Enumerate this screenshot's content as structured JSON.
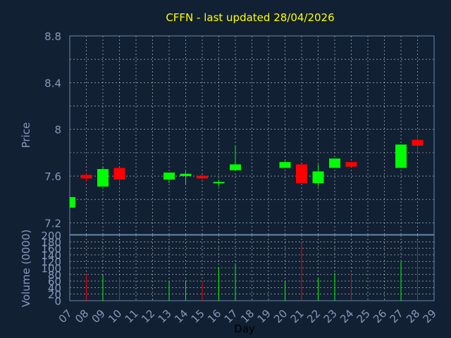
{
  "chart_data": [
    {
      "type": "candlestick",
      "title": "CFFN - last updated 28/04/2026",
      "ylabel": "Price",
      "xlabel": "",
      "ylim": [
        7.1,
        8.8
      ],
      "yticks": [
        "7.2",
        "7.4",
        "7.6",
        "7.8",
        "8",
        "8.2",
        "8.4",
        "8.6",
        "8.8"
      ],
      "ytick_labels": [
        "7.2",
        "",
        "7.6",
        "",
        "8",
        "",
        "8.4",
        "",
        "8.8"
      ],
      "grid": true,
      "up_color": "#00ff00",
      "down_color": "#ff0000",
      "candles": [
        {
          "day": "07",
          "open": 7.33,
          "close": 7.42,
          "high": 7.42,
          "low": 7.33
        },
        {
          "day": "08",
          "open": 7.61,
          "close": 7.58,
          "high": 7.63,
          "low": 7.55
        },
        {
          "day": "09",
          "open": 7.51,
          "close": 7.66,
          "high": 7.68,
          "low": 7.51
        },
        {
          "day": "10",
          "open": 7.67,
          "close": 7.57,
          "high": 7.67,
          "low": 7.53
        },
        {
          "day": "13",
          "open": 7.57,
          "close": 7.63,
          "high": 7.63,
          "low": 7.54
        },
        {
          "day": "14",
          "open": 7.6,
          "close": 7.62,
          "high": 7.64,
          "low": 7.53
        },
        {
          "day": "15",
          "open": 7.6,
          "close": 7.58,
          "high": 7.61,
          "low": 7.57
        },
        {
          "day": "16",
          "open": 7.54,
          "close": 7.55,
          "high": 7.57,
          "low": 7.51
        },
        {
          "day": "17",
          "open": 7.65,
          "close": 7.7,
          "high": 7.86,
          "low": 7.65
        },
        {
          "day": "20",
          "open": 7.67,
          "close": 7.72,
          "high": 7.73,
          "low": 7.67
        },
        {
          "day": "21",
          "open": 7.7,
          "close": 7.54,
          "high": 7.7,
          "low": 7.54
        },
        {
          "day": "22",
          "open": 7.54,
          "close": 7.64,
          "high": 7.7,
          "low": 7.51
        },
        {
          "day": "23",
          "open": 7.67,
          "close": 7.75,
          "high": 7.75,
          "low": 7.67
        },
        {
          "day": "24",
          "open": 7.72,
          "close": 7.68,
          "high": 7.72,
          "low": 7.68
        },
        {
          "day": "27",
          "open": 7.67,
          "close": 7.87,
          "high": 7.87,
          "low": 7.67
        },
        {
          "day": "28",
          "open": 7.91,
          "close": 7.86,
          "high": 7.96,
          "low": 7.8
        }
      ]
    },
    {
      "type": "bar",
      "ylabel": "Volume (0000)",
      "xlabel": "Day",
      "ylim": [
        0,
        200
      ],
      "yticks": [
        0,
        20,
        40,
        60,
        80,
        100,
        120,
        140,
        160,
        180,
        200
      ],
      "categories": [
        "07",
        "08",
        "09",
        "10",
        "11",
        "12",
        "13",
        "14",
        "15",
        "16",
        "17",
        "18",
        "19",
        "20",
        "21",
        "22",
        "23",
        "24",
        "25",
        "26",
        "27",
        "28",
        "29"
      ],
      "values": [
        0,
        80,
        78,
        72,
        0,
        0,
        60,
        62,
        60,
        100,
        112,
        0,
        0,
        58,
        175,
        70,
        85,
        85,
        0,
        0,
        118,
        185,
        0
      ],
      "colors": [
        "none",
        "#ff0000",
        "#00ff00",
        "#ff0000",
        "none",
        "none",
        "#00ff00",
        "#00ff00",
        "#ff0000",
        "#00ff00",
        "#00ff00",
        "none",
        "none",
        "#00ff00",
        "#ff0000",
        "#00ff00",
        "#00ff00",
        "#ff0000",
        "none",
        "none",
        "#00ff00",
        "#ff0000",
        "none"
      ]
    }
  ]
}
